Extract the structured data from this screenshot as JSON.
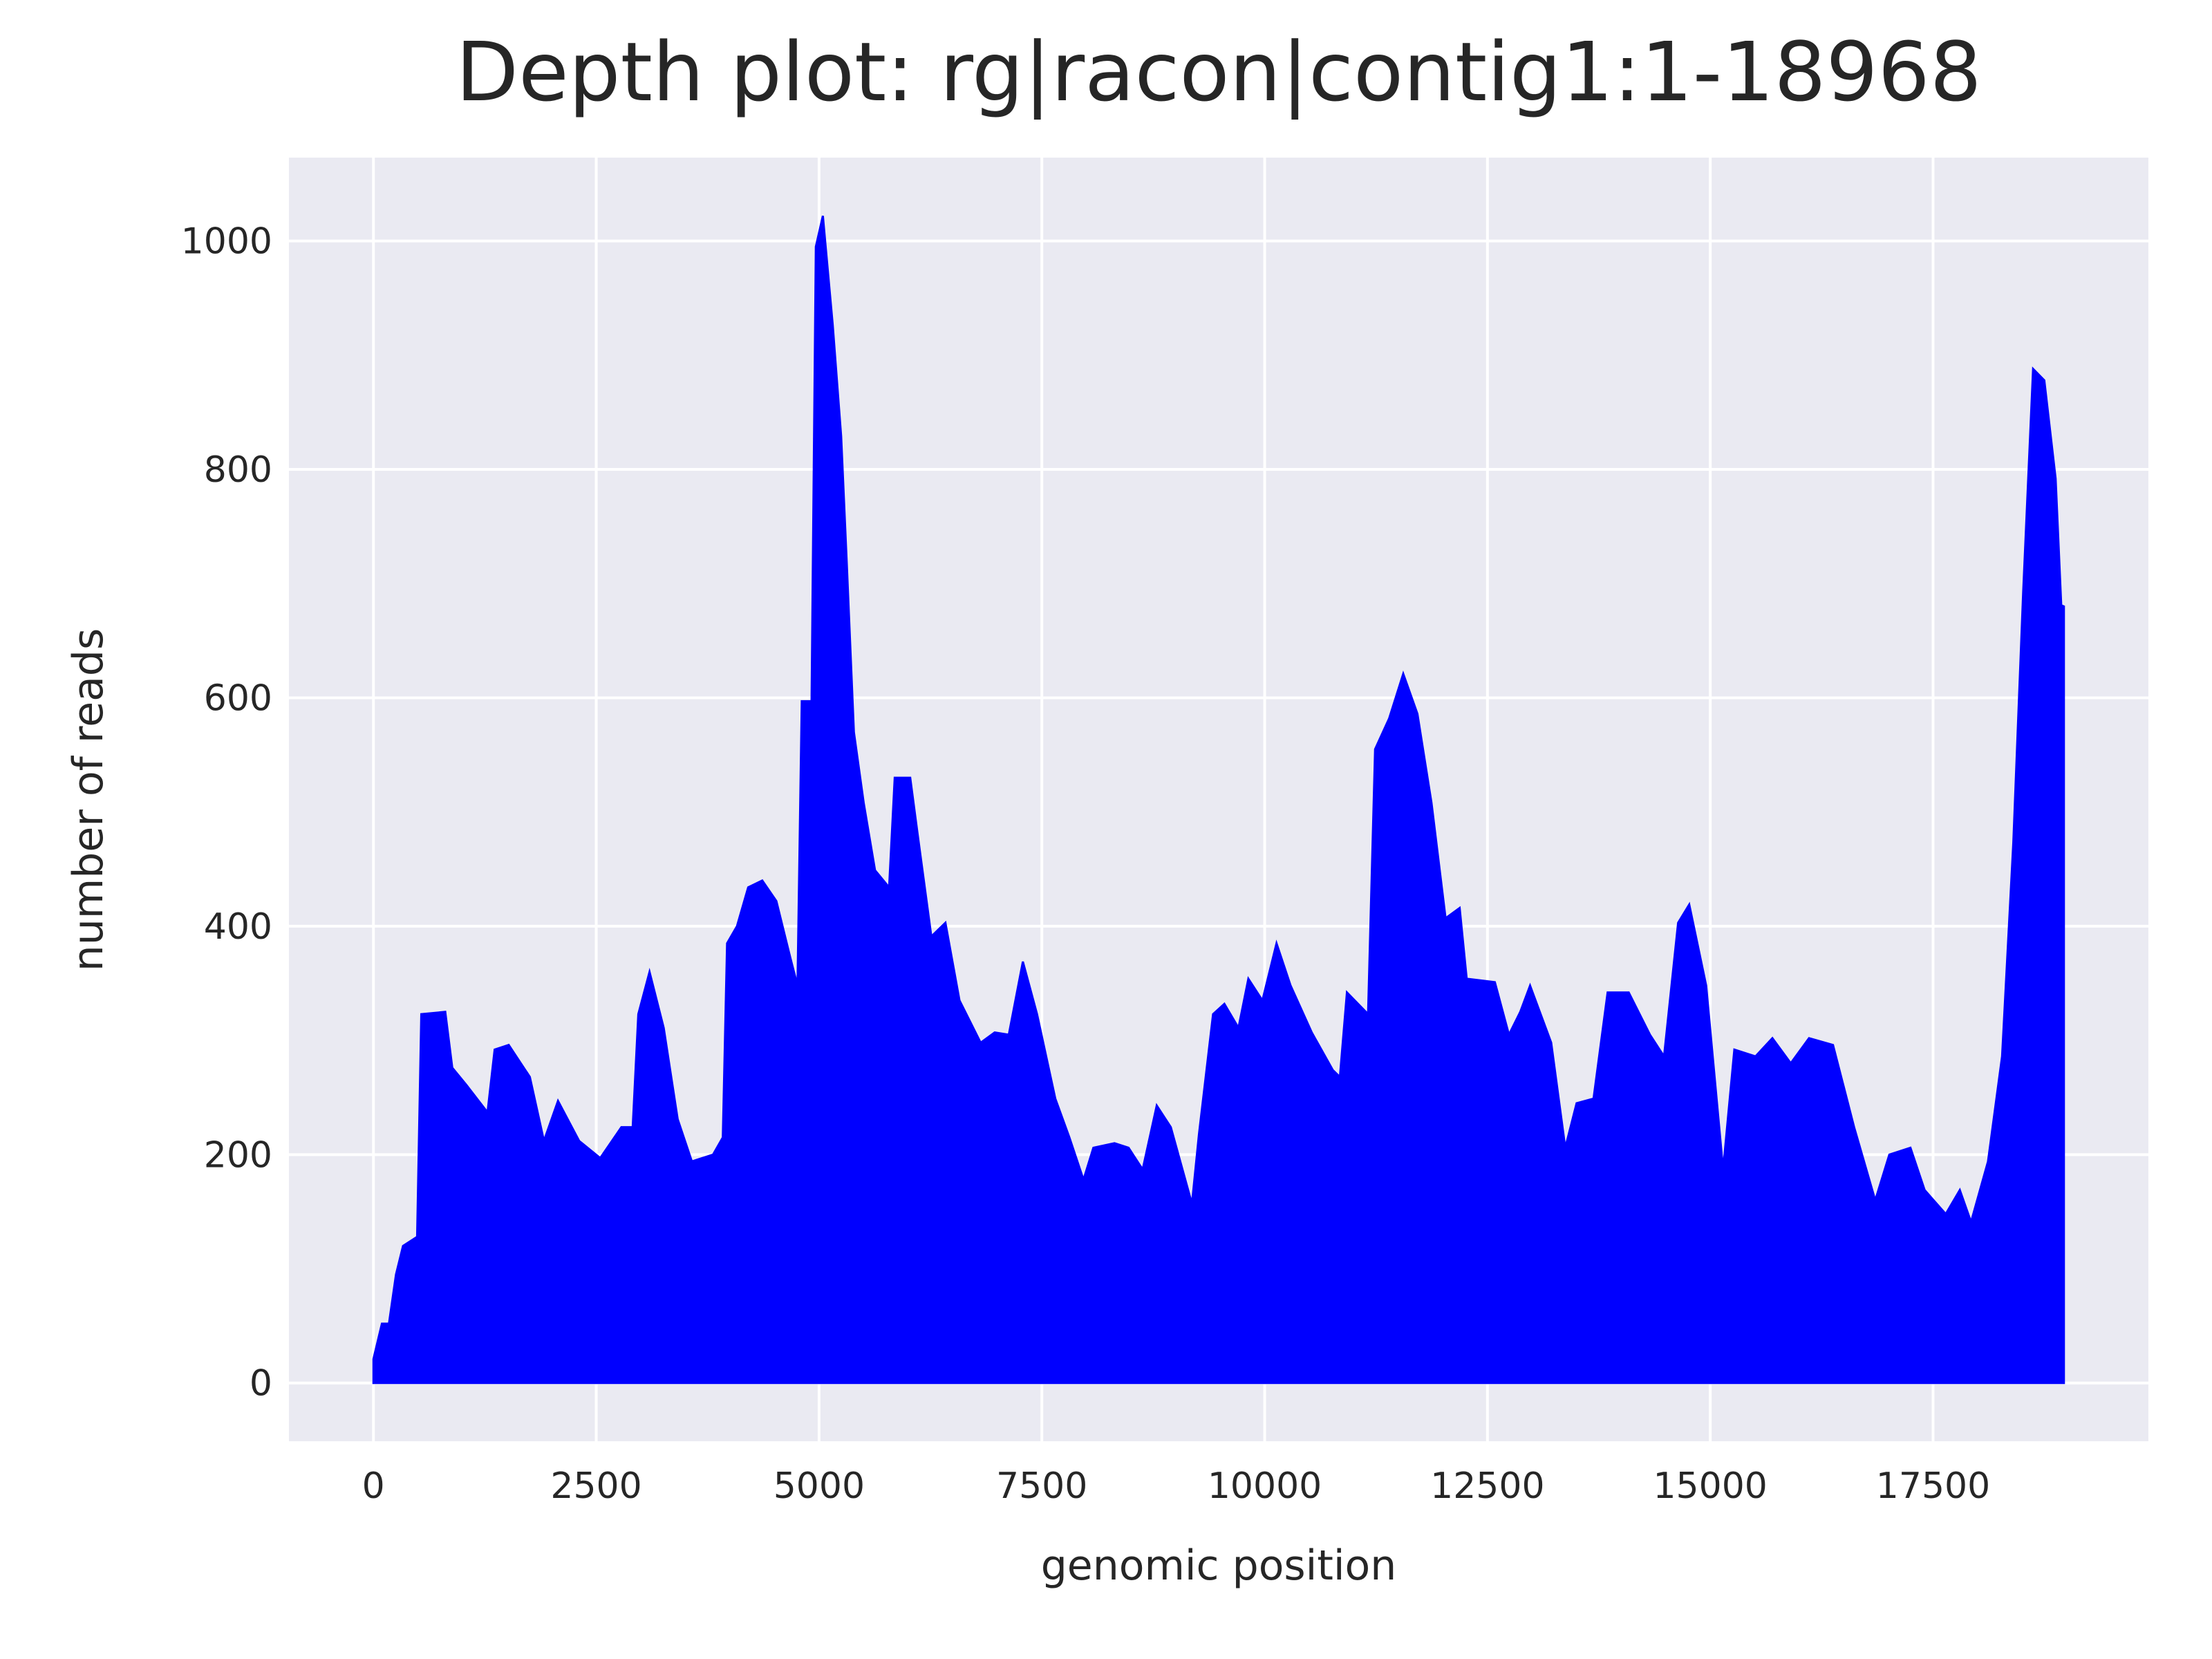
{
  "chart_data": {
    "type": "area",
    "title": "Depth plot: rg|racon|contig1:1-18968",
    "x_label": "genomic position",
    "y_label": "number of reads",
    "color": "#0000ff",
    "grid": true,
    "xlim": [
      -948,
      19916
    ],
    "ylim": [
      -51,
      1073
    ],
    "xticks": [
      0,
      2500,
      5000,
      7500,
      10000,
      12500,
      15000,
      17500
    ],
    "yticks": [
      0,
      200,
      400,
      600,
      800,
      1000
    ],
    "x": [
      0,
      95,
      174,
      253,
      332,
      490,
      537,
      806,
      885,
      1043,
      1280,
      1360,
      1518,
      1755,
      1913,
      2071,
      2308,
      2545,
      2782,
      2909,
      2972,
      3098,
      3257,
      3414,
      3573,
      3810,
      3920,
      3968,
      4079,
      4205,
      4363,
      4521,
      4679,
      4758,
      4806,
      4916,
      4964,
      5043,
      5153,
      5248,
      5311,
      5391,
      5501,
      5628,
      5786,
      5849,
      6023,
      6102,
      6260,
      6418,
      6576,
      6813,
      6971,
      7129,
      7287,
      7446,
      7651,
      7809,
      7967,
      8078,
      8315,
      8473,
      8631,
      8789,
      8947,
      9184,
      9263,
      9421,
      9548,
      9706,
      9817,
      9975,
      10133,
      10291,
      10528,
      10765,
      10844,
      10923,
      11160,
      11239,
      11397,
      11555,
      11714,
      11872,
      12030,
      12188,
      12267,
      12583,
      12741,
      12868,
      12978,
      13215,
      13373,
      13500,
      13690,
      13848,
      14085,
      14323,
      14481,
      14639,
      14764,
      14954,
      15144,
      15270,
      15507,
      15697,
      15903,
      16108,
      16377,
      16614,
      16851,
      17009,
      17246,
      17405,
      17642,
      17800,
      17926,
      18116,
      18274,
      18400,
      18511,
      18622,
      18748,
      18875,
      18938,
      18968
    ],
    "values": [
      21,
      52,
      52,
      95,
      120,
      128,
      323,
      325,
      276,
      261,
      237,
      292,
      296,
      268,
      212,
      247,
      212,
      197,
      224,
      224,
      323,
      360,
      311,
      231,
      194,
      200,
      215,
      385,
      400,
      434,
      440,
      422,
      372,
      348,
      597,
      597,
      995,
      1022,
      927,
      829,
      718,
      570,
      508,
      449,
      434,
      530,
      530,
      483,
      391,
      403,
      335,
      298,
      307,
      305,
      369,
      323,
      249,
      215,
      178,
      206,
      210,
      206,
      187,
      243,
      224,
      157,
      218,
      323,
      332,
      311,
      354,
      335,
      385,
      348,
      307,
      274,
      268,
      342,
      323,
      555,
      582,
      621,
      586,
      508,
      407,
      416,
      354,
      351,
      305,
      325,
      348,
      298,
      206,
      245,
      249,
      342,
      342,
      305,
      286,
      403,
      419,
      348,
      187,
      292,
      286,
      302,
      280,
      302,
      296,
      224,
      160,
      200,
      206,
      169,
      148,
      169,
      141,
      194,
      286,
      473,
      693,
      888,
      878,
      792,
      681,
      680
    ]
  }
}
